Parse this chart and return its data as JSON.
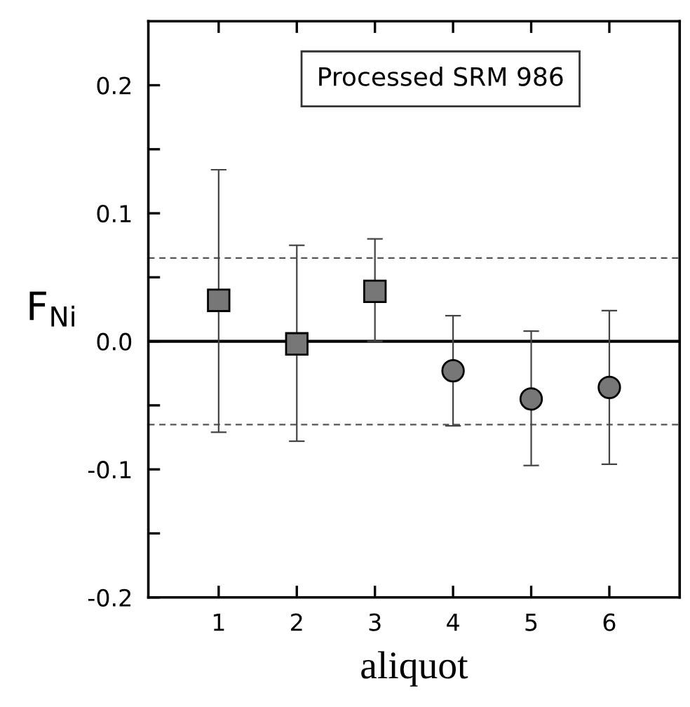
{
  "chart_data": {
    "type": "scatter",
    "xlabel": "aliquot",
    "ylabel": "F$_{Ni}$",
    "annotations": [
      "Processed SRM 986"
    ],
    "series": [
      {
        "color": "#777777",
        "marker": "square",
        "x": [
          1,
          2,
          3
        ],
        "values": [
          0.032,
          -0.002,
          0.039
        ],
        "errors": [
          [
            -0.071,
            0.134
          ],
          [
            -0.078,
            0.075
          ],
          [
            0.0,
            0.08
          ]
        ]
      },
      {
        "color": "#777777",
        "marker": "circle",
        "x": [
          4,
          5,
          6
        ],
        "values": [
          -0.023,
          -0.045,
          -0.036
        ],
        "errors": [
          [
            -0.066,
            0.02
          ],
          [
            -0.097,
            0.008
          ],
          [
            -0.096,
            0.024
          ]
        ]
      }
    ],
    "xlim": [
      0.1,
      6.9
    ],
    "xticks": [
      1,
      2,
      3,
      4,
      5,
      6
    ],
    "ylim": [
      -0.2,
      0.25
    ],
    "yticks": [
      -0.2,
      {
        "value": -0.15,
        "label": null
      },
      -0.1,
      {
        "value": -0.05,
        "label": null
      },
      {
        "value": 0.0,
        "label": "0.0"
      },
      {
        "value": 0.05,
        "label": null
      },
      0.1,
      {
        "value": 0.15,
        "label": null
      },
      0.2
    ],
    "ref_lines": [
      {
        "axis": "y",
        "value": 0.0,
        "line_style": "solid",
        "color": "#000000"
      },
      {
        "axis": "y",
        "value": 0.065,
        "line_style": "dashed",
        "color": "#555555"
      },
      {
        "axis": "y",
        "value": -0.065,
        "line_style": "dashed",
        "color": "#555555"
      }
    ],
    "grid": false,
    "legend": false
  }
}
